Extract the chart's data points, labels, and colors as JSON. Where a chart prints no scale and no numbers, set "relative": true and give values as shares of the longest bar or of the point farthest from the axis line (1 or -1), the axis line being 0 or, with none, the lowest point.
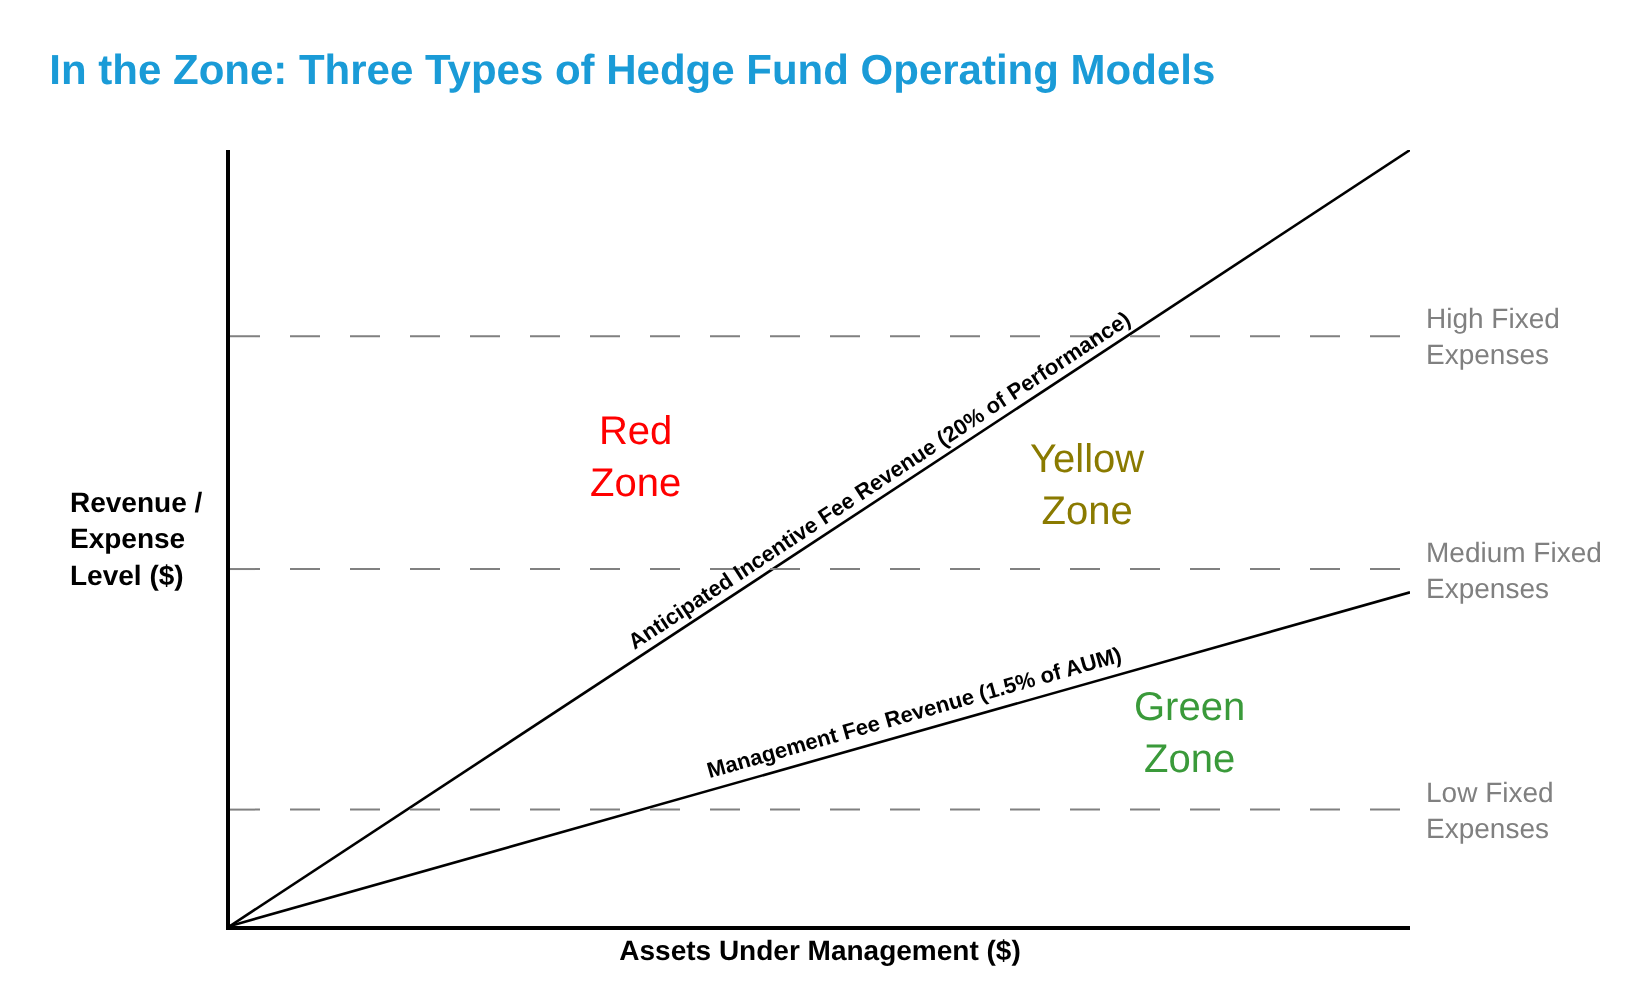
{
  "chart_data": {
    "type": "line",
    "relative": true,
    "title": "In the Zone: Three Types of Hedge Fund Operating Models",
    "xlabel": "Assets Under Management ($)",
    "ylabel": "Revenue / Expense Level ($)",
    "categories": [
      null,
      null
    ],
    "series": [
      {
        "name": "Anticipated Incentive Fee Revenue (20% of Performance)",
        "color": "#000000",
        "values": [
          0,
          1
        ]
      },
      {
        "name": "Management Fee Revenue (1.5% of AUM)",
        "color": "#000000",
        "values": [
          0,
          0.43
        ]
      }
    ],
    "ref_lines": [
      {
        "axis": "y",
        "value": 0.76,
        "label": "High Fixed Expenses",
        "color": "#808080",
        "line_style": "dashed"
      },
      {
        "axis": "y",
        "value": 0.46,
        "label": "Medium Fixed Expenses",
        "color": "#808080",
        "line_style": "dashed"
      },
      {
        "axis": "y",
        "value": 0.15,
        "label": "Low Fixed Expenses",
        "color": "#808080",
        "line_style": "dashed"
      }
    ],
    "annotations": [
      "Red Zone",
      "Yellow Zone",
      "Green Zone"
    ],
    "legend": false,
    "tick_labels": false,
    "marker": "none",
    "line_style": "solid"
  }
}
